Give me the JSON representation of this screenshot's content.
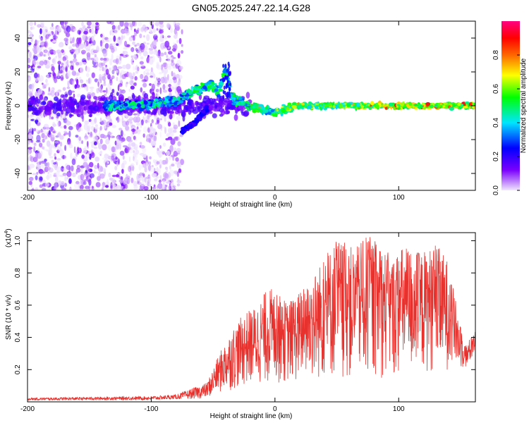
{
  "title": "GN05.2025.247.22.14.G28",
  "chart_data": [
    {
      "type": "heatmap",
      "xlabel": "Height of straight line (km)",
      "ylabel": "Frequency (Hz)",
      "xlim": [
        -200,
        162
      ],
      "ylim": [
        -50,
        50
      ],
      "xticks": [
        -200,
        -100,
        0,
        100
      ],
      "yticks": [
        -40,
        -20,
        0,
        20,
        40
      ],
      "grid": false,
      "colorbar": {
        "label": "Normalized spectral amplitude",
        "range": [
          0,
          1
        ],
        "ticks": [
          0,
          0.2,
          0.4,
          0.6,
          0.8
        ],
        "tick_labels": [
          "0.0",
          "0.2",
          "0.4",
          "0.6",
          "0.8"
        ],
        "colormap": [
          "#f0e6ff",
          "#7b00ff",
          "#0000ff",
          "#00e6ff",
          "#00ff00",
          "#ffff00",
          "#ff6600",
          "#ff0000",
          "#ff0080"
        ]
      },
      "features": {
        "noise_region_x": [
          -200,
          -75
        ],
        "main_ridge": [
          {
            "x": -135,
            "y": 0
          },
          {
            "x": -100,
            "y": 1
          },
          {
            "x": -80,
            "y": 3
          },
          {
            "x": -62,
            "y": 10
          },
          {
            "x": -52,
            "y": 12
          },
          {
            "x": -45,
            "y": 8
          },
          {
            "x": -40,
            "y": 22
          },
          {
            "x": -35,
            "y": 5
          },
          {
            "x": -20,
            "y": 0
          },
          {
            "x": 0,
            "y": -4
          },
          {
            "x": 20,
            "y": 0
          },
          {
            "x": 80,
            "y": 0
          },
          {
            "x": 162,
            "y": 0
          }
        ],
        "lower_branch": [
          {
            "x": -75,
            "y": -15
          },
          {
            "x": -65,
            "y": -10
          },
          {
            "x": -55,
            "y": -2
          }
        ]
      }
    },
    {
      "type": "line",
      "xlabel": "Height of straight line (km)",
      "ylabel": "SNR (10 * v/v)",
      "multiplier": "(x10",
      "multiplier_exp": "4",
      "multiplier_close": ")",
      "xlim": [
        -200,
        162
      ],
      "ylim": [
        0,
        1.05
      ],
      "xticks": [
        -200,
        -100,
        0,
        100
      ],
      "yticks": [
        0.2,
        0.4,
        0.6,
        0.8,
        1.0
      ],
      "ytick_labels": [
        "0.2",
        "0.4",
        "0.6",
        "0.8",
        "1.0"
      ],
      "color": "#e8302c",
      "grid": false,
      "envelope": [
        {
          "x": -200,
          "y": 0.025
        },
        {
          "x": -150,
          "y": 0.03
        },
        {
          "x": -100,
          "y": 0.035
        },
        {
          "x": -80,
          "y": 0.045
        },
        {
          "x": -65,
          "y": 0.09
        },
        {
          "x": -55,
          "y": 0.12
        },
        {
          "x": -45,
          "y": 0.3
        },
        {
          "x": -35,
          "y": 0.45
        },
        {
          "x": -25,
          "y": 0.55
        },
        {
          "x": -15,
          "y": 0.6
        },
        {
          "x": -5,
          "y": 0.72
        },
        {
          "x": 10,
          "y": 0.62
        },
        {
          "x": 25,
          "y": 0.72
        },
        {
          "x": 40,
          "y": 0.9
        },
        {
          "x": 50,
          "y": 1.02
        },
        {
          "x": 65,
          "y": 0.95
        },
        {
          "x": 75,
          "y": 1.04
        },
        {
          "x": 85,
          "y": 0.98
        },
        {
          "x": 95,
          "y": 0.9
        },
        {
          "x": 105,
          "y": 0.98
        },
        {
          "x": 118,
          "y": 0.93
        },
        {
          "x": 130,
          "y": 0.98
        },
        {
          "x": 140,
          "y": 0.88
        },
        {
          "x": 148,
          "y": 0.55
        },
        {
          "x": 155,
          "y": 0.35
        },
        {
          "x": 162,
          "y": 0.48
        }
      ],
      "baseline": [
        {
          "x": -200,
          "y": 0.01
        },
        {
          "x": -100,
          "y": 0.012
        },
        {
          "x": -60,
          "y": 0.02
        },
        {
          "x": -40,
          "y": 0.06
        },
        {
          "x": -20,
          "y": 0.1
        },
        {
          "x": 20,
          "y": 0.12
        },
        {
          "x": 100,
          "y": 0.15
        },
        {
          "x": 145,
          "y": 0.2
        },
        {
          "x": 155,
          "y": 0.2
        },
        {
          "x": 162,
          "y": 0.3
        }
      ]
    }
  ]
}
